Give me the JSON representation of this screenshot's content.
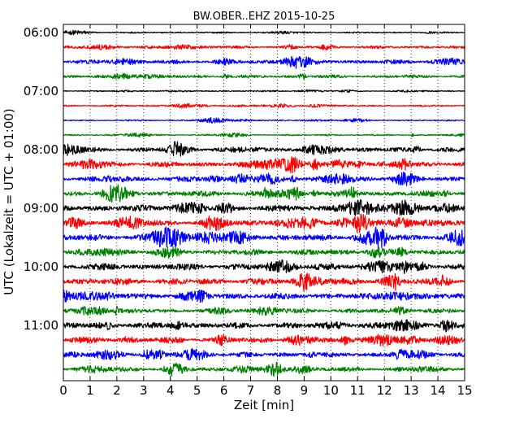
{
  "chart_data": {
    "type": "line",
    "title": "BW.OBER..EHZ 2015-10-25",
    "xlabel": "Zeit  [min]",
    "ylabel": "UTC (Lokalzeit = UTC + 01:00)",
    "xlim": [
      0,
      15
    ],
    "x_ticks": [
      0,
      1,
      2,
      3,
      4,
      5,
      6,
      7,
      8,
      9,
      10,
      11,
      12,
      13,
      14,
      15
    ],
    "x_tick_labels": [
      "0",
      "1",
      "2",
      "3",
      "4",
      "5",
      "6",
      "7",
      "8",
      "9",
      "10",
      "11",
      "12",
      "13",
      "14",
      "15"
    ],
    "grid": "vertical dotted",
    "trace_interval_minutes": 15,
    "trace_colors": [
      "#000000",
      "#ff0000",
      "#0000ff",
      "#008000"
    ],
    "y_tick_labels": [
      "06:00",
      "07:00",
      "08:00",
      "09:00",
      "10:00",
      "11:00"
    ],
    "traces": [
      {
        "start": "06:00",
        "amplitude": 0.1
      },
      {
        "start": "06:15",
        "amplitude": 0.2
      },
      {
        "start": "06:30",
        "amplitude": 0.28
      },
      {
        "start": "06:45",
        "amplitude": 0.22
      },
      {
        "start": "07:00",
        "amplitude": 0.1
      },
      {
        "start": "07:15",
        "amplitude": 0.12
      },
      {
        "start": "07:30",
        "amplitude": 0.1
      },
      {
        "start": "07:45",
        "amplitude": 0.1
      },
      {
        "start": "08:00",
        "amplitude": 0.32
      },
      {
        "start": "08:15",
        "amplitude": 0.38
      },
      {
        "start": "08:30",
        "amplitude": 0.38
      },
      {
        "start": "08:45",
        "amplitude": 0.4
      },
      {
        "start": "09:00",
        "amplitude": 0.45
      },
      {
        "start": "09:15",
        "amplitude": 0.45
      },
      {
        "start": "09:30",
        "amplitude": 0.45
      },
      {
        "start": "09:45",
        "amplitude": 0.4
      },
      {
        "start": "10:00",
        "amplitude": 0.45
      },
      {
        "start": "10:15",
        "amplitude": 0.45
      },
      {
        "start": "10:30",
        "amplitude": 0.42
      },
      {
        "start": "10:45",
        "amplitude": 0.32
      },
      {
        "start": "11:00",
        "amplitude": 0.4
      },
      {
        "start": "11:15",
        "amplitude": 0.42
      },
      {
        "start": "11:30",
        "amplitude": 0.35
      },
      {
        "start": "11:45",
        "amplitude": 0.32
      }
    ]
  }
}
